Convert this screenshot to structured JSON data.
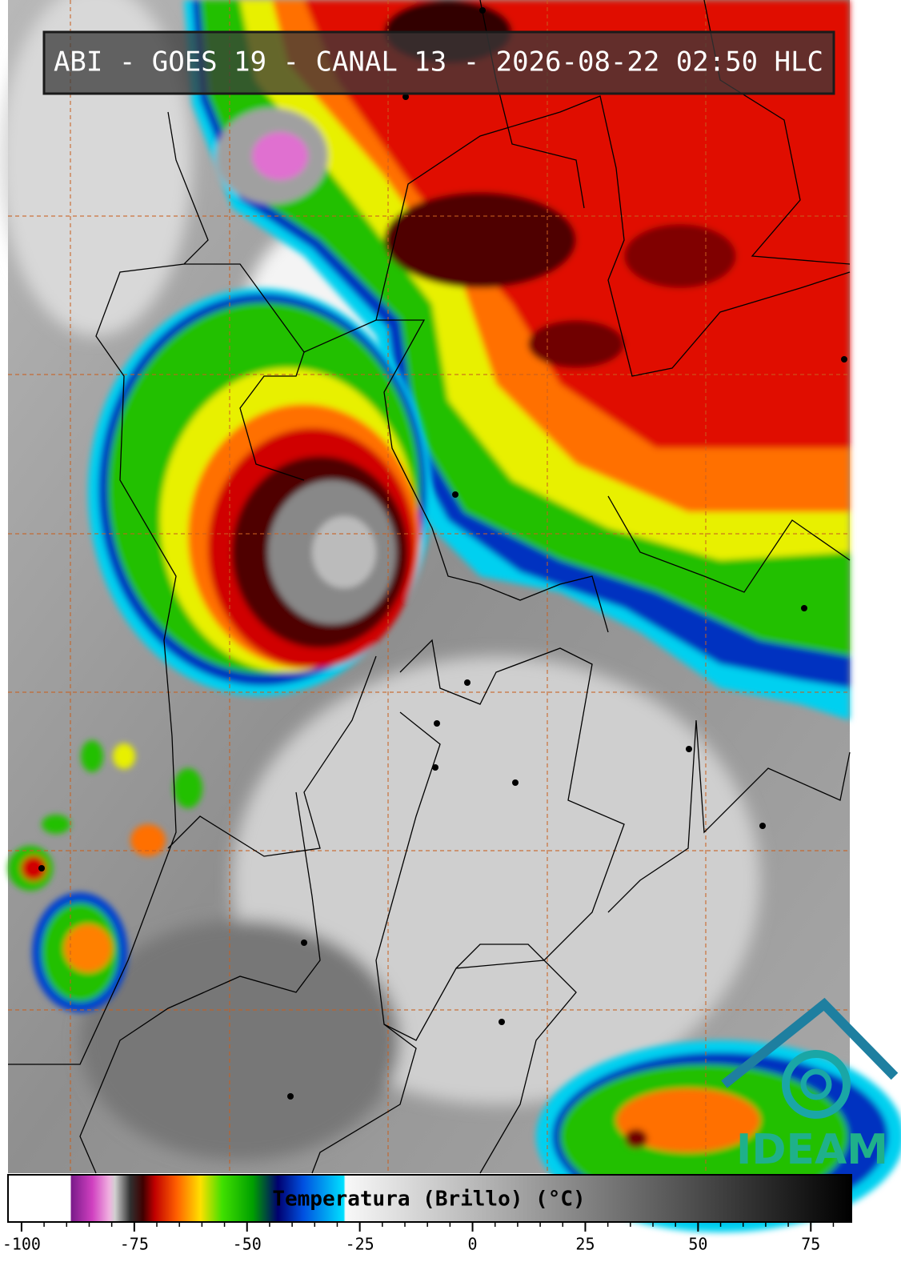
{
  "title": "ABI - GOES 19 - CANAL 13 - 2026-08-22 02:50 HLC",
  "logo": "IDEAM",
  "colorbar": {
    "label": "Temperatura (Brillo) (°C)",
    "xlim": [
      -103,
      84
    ],
    "xticks": [
      -100,
      -75,
      -50,
      -25,
      0,
      25,
      50,
      75
    ]
  }
}
